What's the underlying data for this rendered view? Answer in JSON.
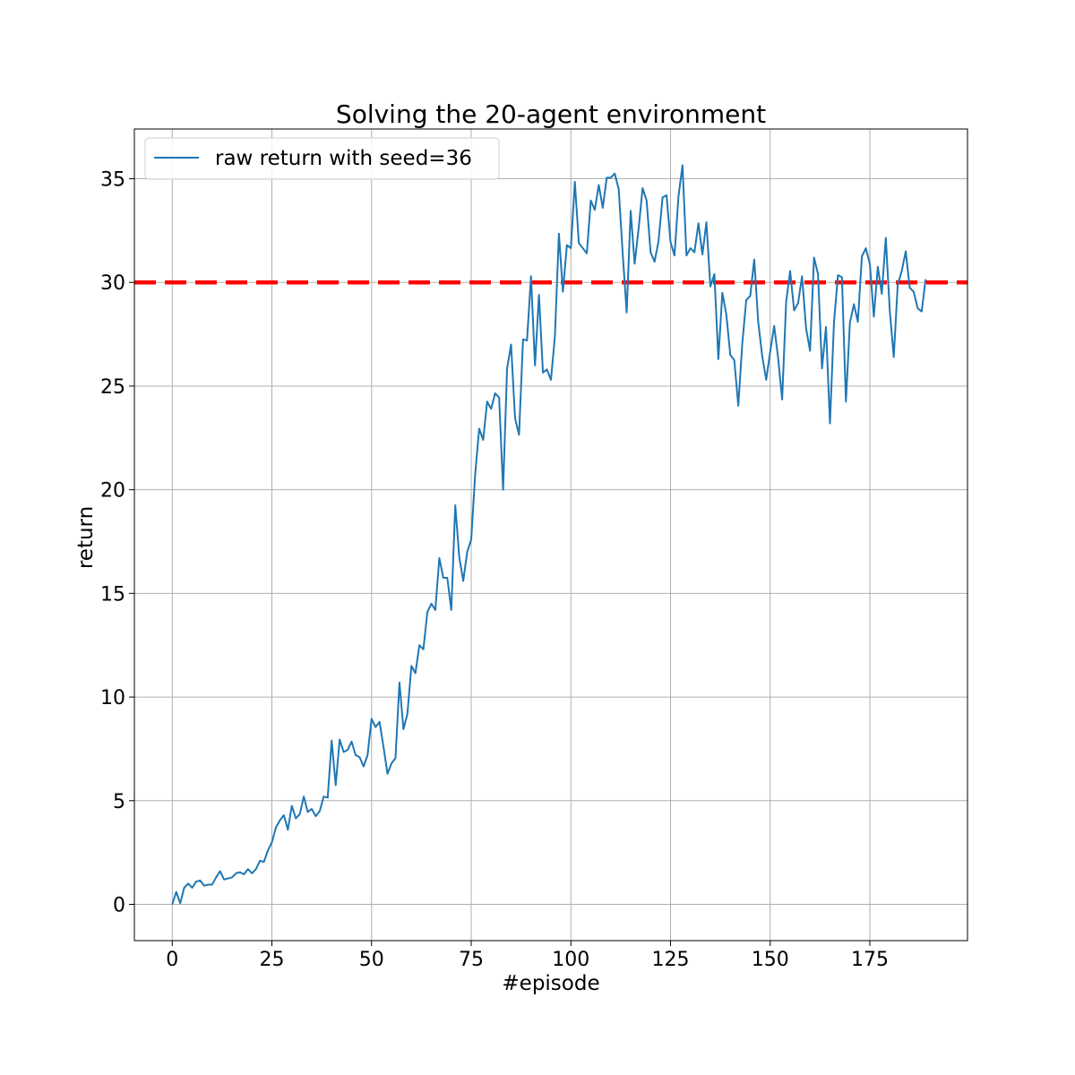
{
  "chart_data": {
    "type": "line",
    "title": "Solving the 20-agent environment",
    "xlabel": "#episode",
    "ylabel": "return",
    "xlim": [
      -9.5,
      199.5
    ],
    "ylim": [
      -1.75,
      37.4
    ],
    "xticks": [
      0,
      25,
      50,
      75,
      100,
      125,
      150,
      175
    ],
    "yticks": [
      0,
      5,
      10,
      15,
      20,
      25,
      30,
      35
    ],
    "grid": true,
    "legend_position": "top-left",
    "series": [
      {
        "name": "raw return with seed=36",
        "color": "#1f77b4",
        "values": [
          0.0,
          0.6,
          0.05,
          0.8,
          1.0,
          0.8,
          1.1,
          1.15,
          0.9,
          0.95,
          0.95,
          1.3,
          1.6,
          1.2,
          1.25,
          1.3,
          1.5,
          1.55,
          1.45,
          1.7,
          1.5,
          1.7,
          2.1,
          2.05,
          2.6,
          3.0,
          3.7,
          4.05,
          4.3,
          3.6,
          4.75,
          4.15,
          4.35,
          5.2,
          4.45,
          4.6,
          4.25,
          4.5,
          5.2,
          5.15,
          7.9,
          5.75,
          7.95,
          7.35,
          7.45,
          7.85,
          7.2,
          7.1,
          6.65,
          7.2,
          8.95,
          8.55,
          8.8,
          7.6,
          6.3,
          6.8,
          7.05,
          10.7,
          8.45,
          9.2,
          11.5,
          11.15,
          12.5,
          12.3,
          14.1,
          14.5,
          14.2,
          16.7,
          15.75,
          15.75,
          14.2,
          19.25,
          16.75,
          15.6,
          17.0,
          17.6,
          20.75,
          22.95,
          22.4,
          24.25,
          23.9,
          24.65,
          24.45,
          20.0,
          25.85,
          27.0,
          23.45,
          22.65,
          27.25,
          27.2,
          30.3,
          26.0,
          29.4,
          25.65,
          25.8,
          25.3,
          27.4,
          32.35,
          29.55,
          31.8,
          31.65,
          34.85,
          31.9,
          31.65,
          31.4,
          33.95,
          33.5,
          34.7,
          33.6,
          35.05,
          35.05,
          35.25,
          34.5,
          31.4,
          28.55,
          33.45,
          30.9,
          32.6,
          34.55,
          33.95,
          31.45,
          31.0,
          32.0,
          34.1,
          34.2,
          31.95,
          31.3,
          34.15,
          35.65,
          31.3,
          31.65,
          31.45,
          32.85,
          31.35,
          32.9,
          29.8,
          30.4,
          26.3,
          29.5,
          28.45,
          26.5,
          26.25,
          24.05,
          27.05,
          29.15,
          29.35,
          31.1,
          28.1,
          26.45,
          25.3,
          26.65,
          27.9,
          26.35,
          24.35,
          29.05,
          30.55,
          28.65,
          29.0,
          30.3,
          27.8,
          26.7,
          31.2,
          30.4,
          25.85,
          27.85,
          23.2,
          28.05,
          30.35,
          30.25,
          24.25,
          28.05,
          28.95,
          28.1,
          31.25,
          31.65,
          30.9,
          28.35,
          30.75,
          29.45,
          32.15,
          28.65,
          26.4,
          29.9,
          30.55,
          31.5,
          29.75,
          29.55,
          28.75,
          28.6,
          30.15
        ]
      }
    ],
    "reference_lines": [
      {
        "y": 30,
        "color": "#ff0000",
        "style": "dashed"
      }
    ]
  }
}
